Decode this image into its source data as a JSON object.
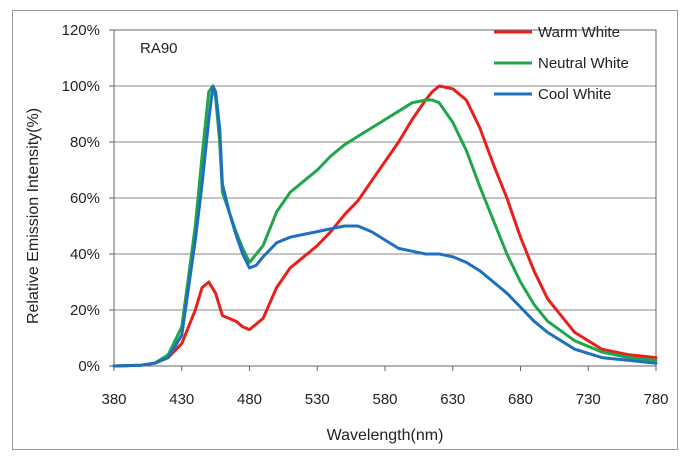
{
  "chart_data": {
    "type": "line",
    "xlabel": "Wavelength(nm)",
    "ylabel": "Relative Emission Intensity(%)",
    "annotation": "RA90",
    "xlim": [
      380,
      780
    ],
    "ylim": [
      0,
      120
    ],
    "x_ticks": [
      380,
      430,
      480,
      530,
      580,
      630,
      680,
      730,
      780
    ],
    "y_ticks": [
      0,
      20,
      40,
      60,
      80,
      100,
      120
    ],
    "y_tick_labels": [
      "0%",
      "20%",
      "40%",
      "60%",
      "80%",
      "100%",
      "120%"
    ],
    "grid": "horizontal",
    "legend_position": "top-right",
    "series": [
      {
        "name": "Warm White",
        "color": "#e8201c",
        "x": [
          380,
          400,
          410,
          420,
          430,
          440,
          445,
          450,
          455,
          460,
          465,
          470,
          475,
          480,
          490,
          500,
          510,
          520,
          530,
          540,
          550,
          560,
          570,
          580,
          590,
          600,
          610,
          615,
          620,
          630,
          640,
          650,
          660,
          670,
          680,
          690,
          700,
          720,
          740,
          760,
          780
        ],
        "y": [
          0,
          0.3,
          1,
          3,
          8,
          20,
          28,
          30,
          26,
          18,
          17,
          16,
          14,
          13,
          17,
          28,
          35,
          39,
          43,
          48,
          54,
          59,
          66,
          73,
          80,
          88,
          95,
          98,
          100,
          99,
          95,
          85,
          72,
          60,
          46,
          34,
          24,
          12,
          6,
          4,
          3
        ]
      },
      {
        "name": "Neutral White",
        "color": "#1fa64a",
        "x": [
          380,
          400,
          410,
          420,
          430,
          440,
          445,
          450,
          453,
          455,
          458,
          460,
          465,
          470,
          475,
          480,
          490,
          500,
          510,
          520,
          530,
          540,
          550,
          560,
          570,
          580,
          590,
          600,
          610,
          615,
          620,
          630,
          640,
          650,
          660,
          670,
          680,
          690,
          700,
          720,
          740,
          760,
          780
        ],
        "y": [
          0,
          0.3,
          1,
          4,
          14,
          50,
          75,
          98,
          100,
          96,
          80,
          62,
          55,
          48,
          42,
          37,
          43,
          55,
          62,
          66,
          70,
          75,
          79,
          82,
          85,
          88,
          91,
          94,
          95,
          95,
          94,
          87,
          77,
          64,
          52,
          40,
          30,
          22,
          16,
          9,
          5,
          3,
          2
        ]
      },
      {
        "name": "Cool White",
        "color": "#1f6fbf",
        "x": [
          380,
          400,
          410,
          420,
          430,
          440,
          445,
          450,
          453,
          455,
          458,
          460,
          465,
          470,
          475,
          480,
          485,
          490,
          500,
          510,
          520,
          530,
          540,
          550,
          560,
          570,
          580,
          590,
          600,
          610,
          620,
          630,
          640,
          650,
          660,
          670,
          680,
          690,
          700,
          720,
          740,
          760,
          780
        ],
        "y": [
          0,
          0.3,
          1,
          3,
          11,
          45,
          65,
          88,
          100,
          98,
          85,
          65,
          55,
          47,
          40,
          35,
          36,
          39,
          44,
          46,
          47,
          48,
          49,
          50,
          50,
          48,
          45,
          42,
          41,
          40,
          40,
          39,
          37,
          34,
          30,
          26,
          21,
          16,
          12,
          6,
          3,
          2,
          1
        ]
      }
    ]
  }
}
